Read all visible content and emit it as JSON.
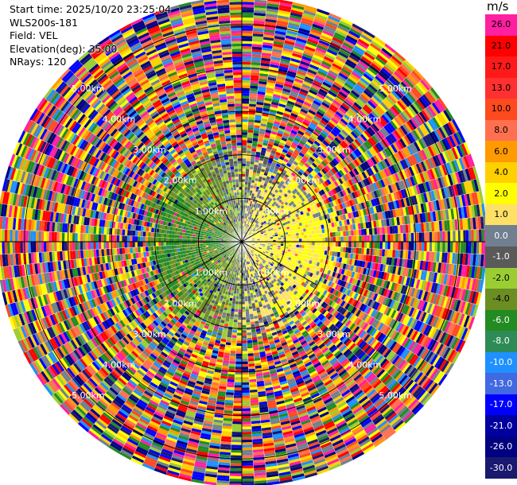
{
  "header": {
    "start_time_label": "Start time:",
    "start_time": "2025/10/20 23:25:04",
    "instrument": "WLS200s-181",
    "field_label": "Field:",
    "field": "VEL",
    "elevation_label": "Elevation(deg):",
    "elevation": "35.00",
    "nrays_label": "NRays:",
    "nrays": "120"
  },
  "chart_data": {
    "type": "polar-ppi",
    "field": "VEL",
    "nrays": 120,
    "range_rings_km": [
      1.0,
      2.0,
      3.0,
      4.0,
      5.0
    ],
    "range_ring_labels": [
      "1.00km",
      "2.00km",
      "3.00km",
      "4.00km",
      "5.00km"
    ],
    "max_range_km": 5.6,
    "colorbar": {
      "unit": "m/s",
      "ticks": [
        "26.0",
        "21.0",
        "17.0",
        "13.0",
        "10.0",
        "8.0",
        "6.0",
        "4.0",
        "2.0",
        "1.0",
        "0.0",
        "-1.0",
        "-2.0",
        "-4.0",
        "-6.0",
        "-8.0",
        "-10.0",
        "-13.0",
        "-17.0",
        "-21.0",
        "-26.0",
        "-30.0"
      ],
      "colors": [
        "#ff1fa0",
        "#ff0000",
        "#ff1a1a",
        "#ff3030",
        "#ff4a20",
        "#ff7050",
        "#ff9a00",
        "#ffd000",
        "#ffff00",
        "#ffe066",
        "#708090",
        "#5a5a5a",
        "#9acd32",
        "#6b8e23",
        "#228b22",
        "#2e8b57",
        "#1e90ff",
        "#4169e1",
        "#0000ff",
        "#0000a0",
        "#000080",
        "#191970"
      ]
    },
    "inner_mean_velocity_ms": {
      "east_sector": 2.5,
      "west_sector": -4.5
    }
  }
}
